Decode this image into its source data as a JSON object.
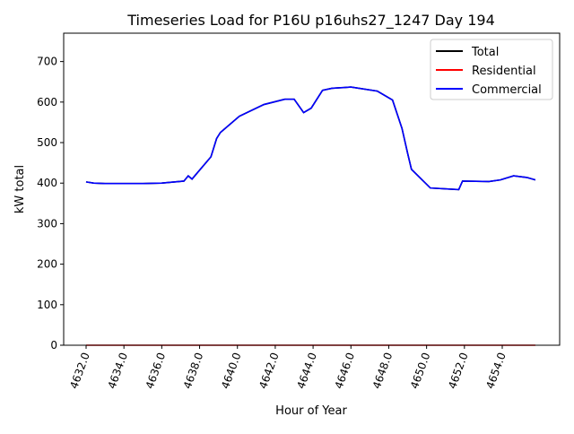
{
  "chart_data": {
    "type": "line",
    "title": "Timeseries Load for P16U p16uhs27_1247  Day 194",
    "xlabel": "Hour of Year",
    "ylabel": "kW total",
    "xlim": [
      4630.8,
      4658.0
    ],
    "ylim": [
      0,
      770
    ],
    "xticks": [
      4632,
      4634,
      4636,
      4638,
      4640,
      4642,
      4644,
      4646,
      4648,
      4650,
      4652,
      4654
    ],
    "xtick_labels": [
      "4632.0",
      "4634.0",
      "4636.0",
      "4638.0",
      "4640.0",
      "4642.0",
      "4644.0",
      "4646.0",
      "4648.0",
      "4650.0",
      "4652.0",
      "4654.0"
    ],
    "yticks": [
      0,
      100,
      200,
      300,
      400,
      500,
      600,
      700
    ],
    "ytick_labels": [
      "0",
      "100",
      "200",
      "300",
      "400",
      "500",
      "600",
      "700"
    ],
    "legend_position": "top-right",
    "series": [
      {
        "name": "Total",
        "color": "#000000",
        "x": [
          4632,
          4632.4,
          4633,
          4634,
          4635,
          4636,
          4637.17,
          4637.4,
          4637.6,
          4638.6,
          4638.9,
          4639.1,
          4640.1,
          4641.4,
          4642.5,
          4643,
          4643.5,
          4643.9,
          4644.5,
          4645,
          4646,
          4647.4,
          4648.2,
          4648.7,
          4649,
          4649.2,
          4650.2,
          4651.7,
          4651.9,
          4653.3,
          4653.9,
          4654.6,
          4655.3,
          4655.75
        ],
        "y": [
          403,
          400,
          399,
          399,
          399,
          400,
          405,
          418,
          410,
          465,
          510,
          525,
          565,
          594,
          607,
          607,
          574,
          585,
          629,
          634,
          637,
          627,
          605,
          535,
          473,
          434,
          388,
          384,
          405,
          404,
          408,
          418,
          414,
          408
        ]
      },
      {
        "name": "Residential",
        "color": "#ff0000",
        "x": [
          4632,
          4655.75
        ],
        "y": [
          0,
          0
        ]
      },
      {
        "name": "Commercial",
        "color": "#0000ff",
        "x": [
          4632,
          4632.4,
          4633,
          4634,
          4635,
          4636,
          4637.17,
          4637.4,
          4637.6,
          4638.6,
          4638.9,
          4639.1,
          4640.1,
          4641.4,
          4642.5,
          4643,
          4643.5,
          4643.9,
          4644.5,
          4645,
          4646,
          4647.4,
          4648.2,
          4648.7,
          4649,
          4649.2,
          4650.2,
          4651.7,
          4651.9,
          4653.3,
          4653.9,
          4654.6,
          4655.3,
          4655.75
        ],
        "y": [
          403,
          400,
          399,
          399,
          399,
          400,
          405,
          418,
          410,
          465,
          510,
          525,
          565,
          594,
          607,
          607,
          574,
          585,
          629,
          634,
          637,
          627,
          605,
          535,
          473,
          434,
          388,
          384,
          405,
          404,
          408,
          418,
          414,
          408
        ]
      }
    ]
  }
}
